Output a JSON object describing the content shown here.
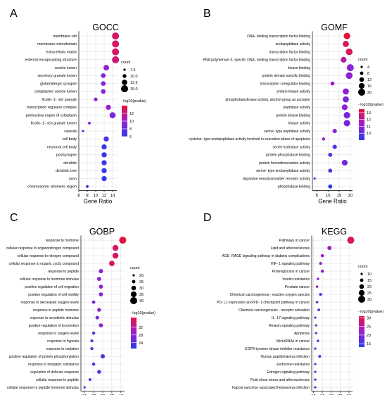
{
  "chart_data": [
    {
      "panel_letter": "A",
      "type": "scatter",
      "title": "GOCC",
      "xlabel": "Gene Ratio",
      "xlim": [
        6,
        15
      ],
      "xticks": [
        6,
        8,
        10,
        12,
        14
      ],
      "categories": [
        "membrane raft",
        "membrane microdomain",
        "extracellular matrix",
        "external encapsulating structure",
        "vesicle lumen",
        "secretory granule lumen",
        "glutamatergic synapse",
        "cytoplasmic vesicle lumen",
        "ficolin- 1- rich granule",
        "transcription regulator complex",
        "perinuclear region of cytoplasm",
        "ficolin- 1- rich granule lumen",
        "caveola",
        "cell body",
        "neuronal cell body",
        "postsynapse",
        "dendrite",
        "dendritic tree",
        "axon",
        "chromosome, telomeric region"
      ],
      "gene_ratio": [
        14.7,
        14.7,
        14.7,
        14.7,
        12.5,
        11.8,
        11.8,
        11.8,
        10.0,
        13.0,
        14.0,
        8.5,
        7.0,
        12.5,
        12.0,
        12.0,
        12.0,
        12.0,
        12.0,
        8.0
      ],
      "count": [
        16,
        16,
        16,
        16,
        13,
        11,
        11,
        11,
        9,
        12,
        14,
        7,
        6,
        12,
        12,
        12,
        12,
        12,
        12,
        7
      ],
      "neg_log10_pvalue": [
        13,
        13,
        13,
        12.5,
        10,
        9,
        9,
        9,
        9.5,
        10,
        9,
        9,
        6,
        7,
        6.5,
        6.5,
        6.5,
        6.5,
        6.5,
        6.5
      ],
      "size_legend": {
        "title": "count",
        "values": [
          "7.5",
          "10.0",
          "12.5",
          "15.0"
        ]
      },
      "color_legend": {
        "title": "- log10(pvalue)",
        "ticks": [
          "12",
          "10",
          "8",
          "6"
        ],
        "range": [
          6,
          14
        ]
      }
    },
    {
      "panel_letter": "B",
      "type": "scatter",
      "title": "GOMF",
      "xlabel": "Gene Ratio",
      "xlim": [
        3,
        21
      ],
      "xticks": [
        5,
        10,
        15,
        20
      ],
      "categories": [
        "DNA- binding transcription factor binding",
        "endopeptidase activity",
        "transcription factor binding",
        "RNA polymerase II- specific DNA- binding transcription factor binding",
        "kinase binding",
        "protein domain specific binding",
        "transcription coregulator binding",
        "protein kinase activity",
        "phosphotransferase activity, alcohol group as acceptor",
        "peptidase activity",
        "protein kinase binding",
        "kinase activity",
        "serine- type peptidase activity",
        "cysteine- type endopeptidase activity involved in execution phase of apoptosis",
        "serine hydrolase activity",
        "protein phosphatase binding",
        "protein homodimerization activity",
        "serine- type endopeptidase activity",
        "dopamine neurotransmitter receptor activity",
        "phosphatase binding"
      ],
      "gene_ratio": [
        18.5,
        18,
        19.5,
        17,
        20,
        19.5,
        12,
        18,
        18,
        17.5,
        18.5,
        18.5,
        13,
        8,
        13,
        11,
        17.5,
        11,
        4,
        11
      ],
      "count": [
        18,
        17,
        19,
        16,
        20,
        19,
        10,
        17,
        17,
        16,
        18,
        18,
        11,
        7,
        11,
        10,
        16,
        10,
        4,
        10
      ],
      "neg_log10_pvalue": [
        13.5,
        13,
        13,
        12,
        11,
        11,
        11.5,
        11,
        10.5,
        11,
        10.5,
        10.5,
        11,
        11,
        10,
        9.5,
        10.5,
        9.5,
        9.5,
        9
      ],
      "size_legend": {
        "title": "count",
        "values": [
          "4",
          "8",
          "12",
          "16",
          "20"
        ]
      },
      "color_legend": {
        "title": "- log10(pvalue)",
        "ticks": [
          "13",
          "12",
          "11",
          "10"
        ],
        "range": [
          9,
          13.5
        ]
      }
    },
    {
      "panel_letter": "C",
      "type": "scatter",
      "title": "GOBP",
      "xlabel": "Gene Ratio",
      "xlim": [
        18,
        42
      ],
      "xticks": [
        20,
        25,
        30,
        35,
        40
      ],
      "categories": [
        "response to hormone",
        "cellular response to organonitrogen compound",
        "cellular response to nitrogen compound",
        "cellular response to organic cyclic compound",
        "response to peptide",
        "cellular response to hormone stimulus",
        "positive regulation of cell migration",
        "positive regulation of cell motility",
        "response to decreased oxygen levels",
        "response to peptide hormone",
        "response to xenobiotic stimulus",
        "positive regulation of locomotion",
        "response to oxygen levels",
        "response to hypoxia",
        "response to radiation",
        "positive regulation of protein phosphorylation",
        "response to inorganic substance",
        "regulation of defense response",
        "cellular response to peptide",
        "cellular response to peptide hormone stimulus"
      ],
      "gene_ratio": [
        41,
        37,
        37,
        35,
        29,
        28,
        29,
        29,
        25,
        28,
        27,
        29,
        25,
        24,
        24,
        30,
        25,
        28,
        23,
        20
      ],
      "count": [
        41,
        36,
        36,
        34,
        29,
        28,
        28,
        28,
        25,
        27,
        26,
        28,
        24,
        23,
        23,
        29,
        24,
        27,
        22,
        20
      ],
      "neg_log10_pvalue": [
        37,
        35,
        35,
        35,
        28,
        29,
        28,
        28,
        26,
        28,
        26,
        28,
        25,
        24,
        23,
        24,
        22,
        23,
        22,
        23
      ],
      "size_legend": {
        "title": "count",
        "values": [
          "20",
          "25",
          "30",
          "35",
          "40"
        ]
      },
      "color_legend": {
        "title": "- log10(pvalue)",
        "ticks": [
          "32",
          "28",
          "24"
        ],
        "range": [
          21,
          37
        ]
      }
    },
    {
      "panel_letter": "D",
      "type": "scatter",
      "title": "KEGG",
      "xlabel": "Gene Ratio",
      "xlim": [
        9,
        32
      ],
      "xticks": [
        10,
        15,
        20,
        25,
        30
      ],
      "categories": [
        "Pathways in cancer",
        "Lipid and atherosclerosis",
        "AGE- RAGE signaling pathway in diabetic complications",
        "HIF- 1 signaling pathway",
        "Proteoglycans in cancer",
        "Insulin resistance",
        "Prostate cancer",
        "Chemical carcinogenesis - reactive oxygen species",
        "PD- L1 expression and PD- 1 checkpoint pathway in cancer",
        "Chemical carcinogenesis - receptor activation",
        "IL- 17 signaling pathway",
        "Relaxin signaling pathway",
        "Apoptosis",
        "MicroRNAs in cancer",
        "EGFR tyrosine kinase inhibitor resistance",
        "Human papillomavirus infection",
        "Endocrine resistance",
        "Estrogen signaling pathway",
        "Fluid shear stress and atherosclerosis",
        "Kaposi sarcoma- associated herpesvirus infection"
      ],
      "gene_ratio": [
        31,
        19,
        15,
        14,
        15,
        12.5,
        12,
        14,
        12,
        13,
        11,
        11.5,
        11.5,
        12.5,
        11,
        13.5,
        11,
        11,
        11,
        11
      ],
      "count": [
        31,
        19,
        15,
        14,
        15,
        12,
        12,
        14,
        12,
        13,
        11,
        11,
        11,
        12,
        11,
        13,
        11,
        11,
        11,
        11
      ],
      "neg_log10_pvalue": [
        29,
        23,
        22,
        22,
        21,
        21,
        21,
        18,
        19,
        18,
        19,
        17,
        17,
        16,
        16,
        15,
        16,
        15,
        15,
        15
      ],
      "size_legend": {
        "title": "count",
        "values": [
          "10",
          "15",
          "20",
          "25",
          "30"
        ]
      },
      "color_legend": {
        "title": "- log10(pvalue)",
        "ticks": [
          "30",
          "25",
          "20",
          "15"
        ],
        "range": [
          13,
          31
        ]
      }
    }
  ],
  "colors": {
    "high": "#e8133b",
    "mid": "#9a1fd2",
    "low": "#2b3bea",
    "grid": "#d9d9d9",
    "axis": "#000000"
  }
}
